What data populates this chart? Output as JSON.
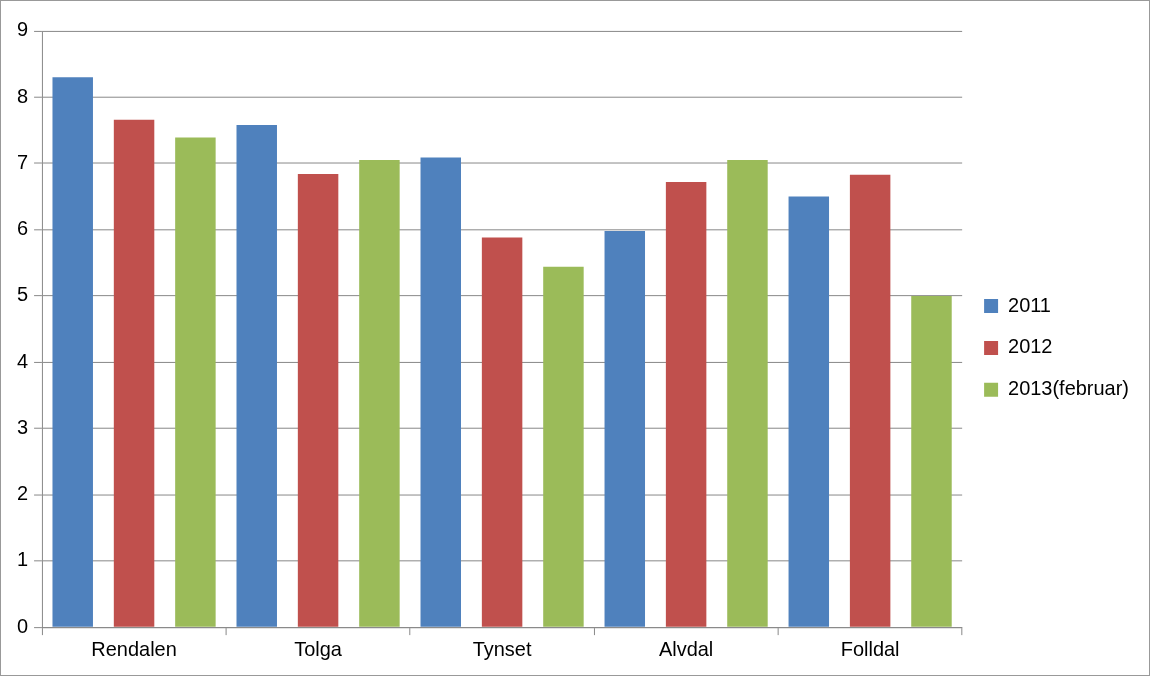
{
  "chart_data": {
    "type": "bar",
    "categories": [
      "Rendalen",
      "Tolga",
      "Tynset",
      "Alvdal",
      "Folldal"
    ],
    "series": [
      {
        "name": "2011",
        "color": "#4f81bd",
        "values": [
          8.3,
          7.58,
          7.09,
          5.98,
          6.5
        ]
      },
      {
        "name": "2012",
        "color": "#c0504d",
        "values": [
          7.66,
          6.84,
          5.88,
          6.72,
          6.83
        ]
      },
      {
        "name": "2013(februar)",
        "color": "#9bbb59",
        "values": [
          7.39,
          7.05,
          5.44,
          7.05,
          5.0
        ]
      }
    ],
    "ylim": [
      0,
      9
    ],
    "yticks": [
      0,
      1,
      2,
      3,
      4,
      5,
      6,
      7,
      8,
      9
    ],
    "grid": "y",
    "legend": "right"
  }
}
